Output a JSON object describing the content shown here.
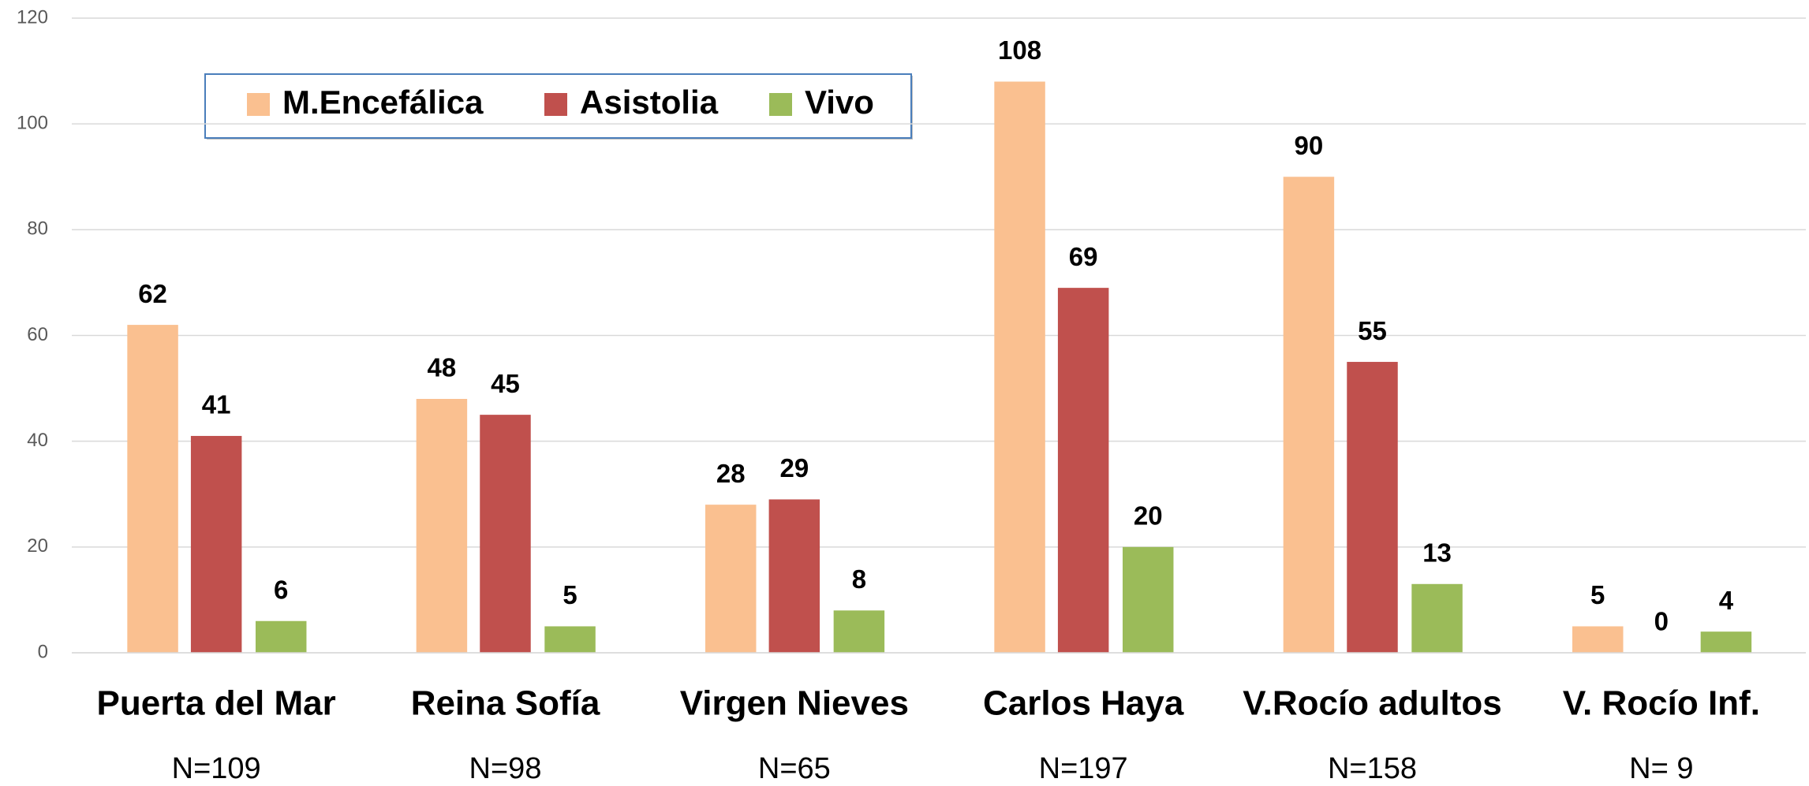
{
  "chart_data": {
    "type": "bar",
    "categories": [
      "Puerta del Mar",
      "Reina Sofía",
      "Virgen Nieves",
      "Carlos Haya",
      "V.Rocío adultos",
      "V. Rocío Inf."
    ],
    "category_notes": [
      "N=109",
      "N=98",
      "N=65",
      "N=197",
      "N=158",
      "N= 9"
    ],
    "series": [
      {
        "name": "M.Encefálica",
        "color": "#fac090",
        "values": [
          62,
          48,
          28,
          108,
          90,
          5
        ]
      },
      {
        "name": "Asistolia",
        "color": "#c0504d",
        "values": [
          41,
          45,
          29,
          69,
          55,
          0
        ]
      },
      {
        "name": "Vivo",
        "color": "#9bbb59",
        "values": [
          6,
          5,
          8,
          20,
          13,
          4
        ]
      }
    ],
    "ylim": [
      0,
      120
    ],
    "yticks": [
      0,
      20,
      40,
      60,
      80,
      100,
      120
    ],
    "grid": true,
    "legend": "top-left"
  }
}
